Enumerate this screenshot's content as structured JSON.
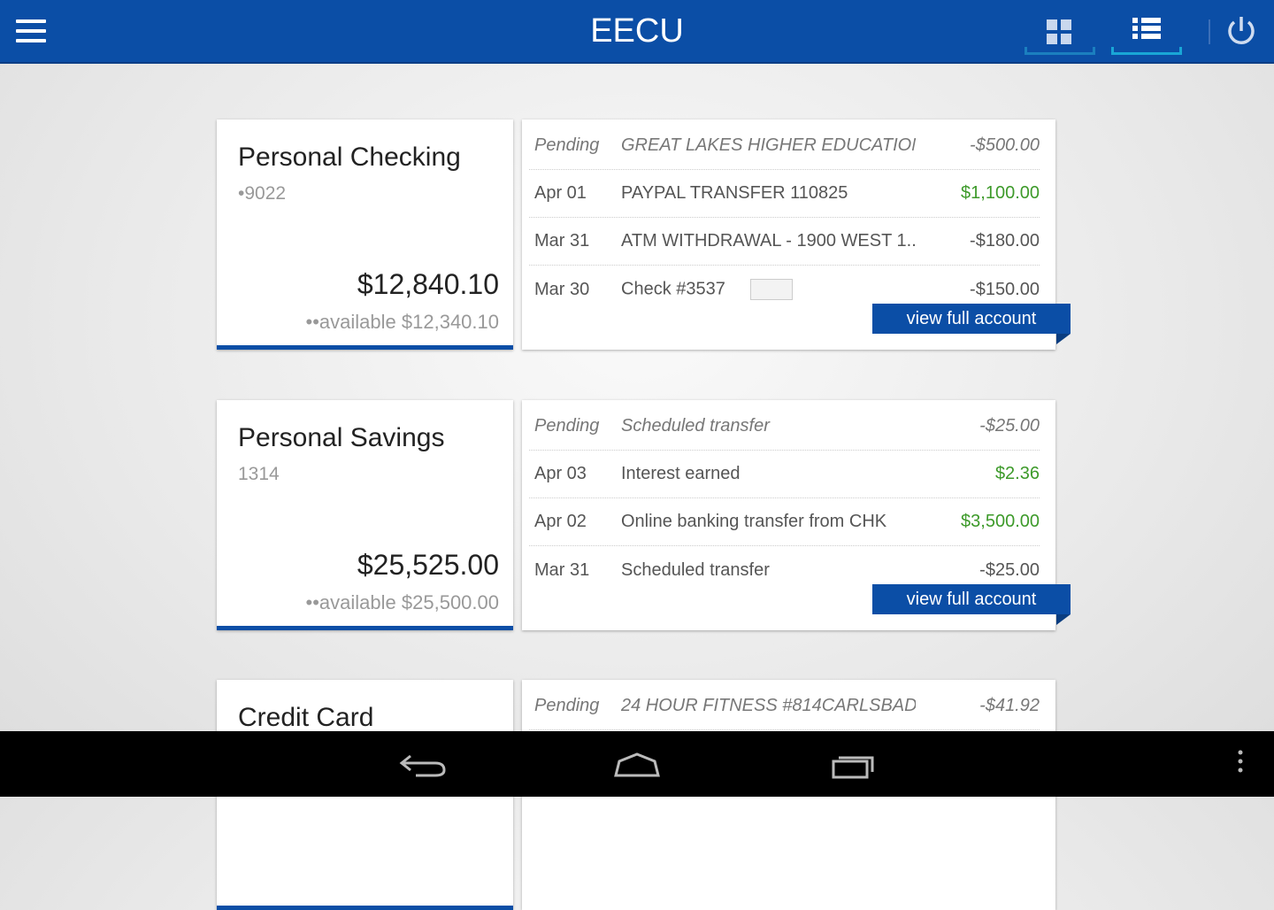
{
  "header": {
    "title": "EECU",
    "views": [
      {
        "name": "grid view",
        "active": false
      },
      {
        "name": "list view",
        "active": true
      }
    ]
  },
  "accounts": [
    {
      "name": "Personal Checking",
      "number": "•9022",
      "balance": "$12,840.10",
      "available": "••available $12,340.10",
      "view_label": "view full account",
      "transactions": [
        {
          "date": "Pending",
          "desc": "GREAT LAKES HIGHER EDUCATION...",
          "amount": "-$500.00",
          "pending": true
        },
        {
          "date": "Apr 01",
          "desc": "PAYPAL TRANSFER 110825",
          "amount": "$1,100.00",
          "credit": true
        },
        {
          "date": "Mar 31",
          "desc": "ATM WITHDRAWAL - 1900 WEST 1...",
          "amount": "-$180.00"
        },
        {
          "date": "Mar 30",
          "desc": "Check #3537",
          "amount": "-$150.00",
          "check_icon": true
        }
      ]
    },
    {
      "name": "Personal Savings",
      "number": "1314",
      "balance": "$25,525.00",
      "available": "••available $25,500.00",
      "view_label": "view full account",
      "transactions": [
        {
          "date": "Pending",
          "desc": "Scheduled transfer",
          "amount": "-$25.00",
          "pending": true
        },
        {
          "date": "Apr 03",
          "desc": "Interest earned",
          "amount": "$2.36",
          "credit": true
        },
        {
          "date": "Apr 02",
          "desc": "Online banking transfer from CHK",
          "amount": "$3,500.00",
          "credit": true
        },
        {
          "date": "Mar 31",
          "desc": "Scheduled transfer",
          "amount": "-$25.00"
        }
      ]
    },
    {
      "name": "Credit Card",
      "transactions": [
        {
          "date": "Pending",
          "desc": "24 HOUR FITNESS #814CARLSBAD...",
          "amount": "-$41.92",
          "pending": true
        }
      ]
    }
  ],
  "colors": {
    "brand": "#0b4ea6",
    "credit": "#3d9a2a",
    "accent": "#19a6d6"
  }
}
